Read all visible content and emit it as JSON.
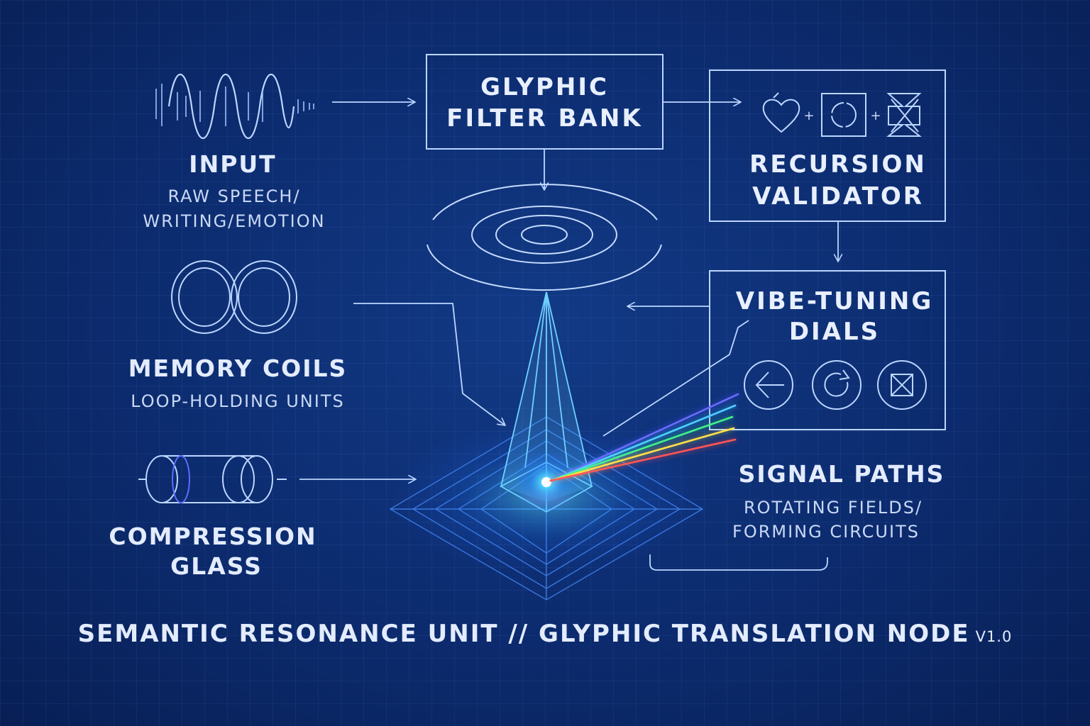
{
  "colors": {
    "background": "#0c2b6e",
    "line": "#bcd6ff",
    "glow": "#3fb8ff",
    "spectrum": [
      "#4a4cff",
      "#2fb9ff",
      "#34e07a",
      "#f5d23a",
      "#ff4646"
    ]
  },
  "icons": {
    "input": "waveform-icon",
    "memory": "interlocked-rings-icon",
    "compression": "glass-cylinder-icon",
    "filter": "concentric-ellipses-icon",
    "core": "prism-pyramid-icon",
    "validator": [
      "heart-icon",
      "cycle-square-icon",
      "hourglass-x-icon"
    ],
    "dials": [
      "left-arrow-dial-icon",
      "refresh-dial-icon",
      "x-box-dial-icon"
    ]
  },
  "input": {
    "title": "INPUT",
    "subtitle_1": "RAW SPEECH/",
    "subtitle_2": "WRITING/EMOTION"
  },
  "memory": {
    "title": "MEMORY COILS",
    "subtitle": "LOOP-HOLDING UNITS"
  },
  "compression": {
    "title_1": "COMPRESSION",
    "title_2": "GLASS"
  },
  "filter_bank": {
    "line_1": "GLYPHIC",
    "line_2": "FILTER BANK"
  },
  "validator": {
    "line_1": "RECURSION",
    "line_2": "VALIDATOR",
    "plus": "+"
  },
  "dials": {
    "line_1": "VIBE-TUNING",
    "line_2": "DIALS"
  },
  "signal": {
    "title": "SIGNAL PATHS",
    "subtitle_1": "ROTATING FIELDS/",
    "subtitle_2": "FORMING CIRCUITS"
  },
  "footer": {
    "text": "SEMANTIC RESONANCE UNIT // GLYPHIC TRANSLATION NODE",
    "version": "V1.0"
  }
}
